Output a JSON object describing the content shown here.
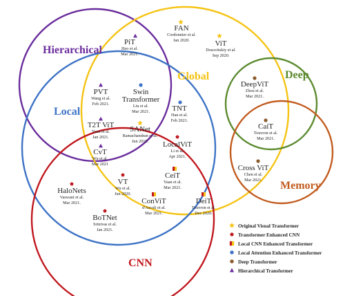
{
  "colors": {
    "hierarchical": "#6a2c9c",
    "global": "#f5c312",
    "local": "#3d73c5",
    "deep": "#5b8a2e",
    "memory": "#c25b1e",
    "cnn": "#c0181e",
    "text": "#222222",
    "star": "#f5c312",
    "pentagon": "#c0181e",
    "dot": "#3d73c5",
    "brown_dot": "#8a5a2b",
    "triangle": "#6a2c9c"
  },
  "sets": {
    "hierarchical": "Hierarchical",
    "global": "Global",
    "local": "Local",
    "deep": "Deep",
    "memory": "Memory",
    "cnn": "CNN"
  },
  "models": [
    {
      "key": "fan",
      "name": "FAN",
      "lines": [
        "Cordonnier et al.",
        "Jan 2020."
      ],
      "marker": "star"
    },
    {
      "key": "vit",
      "name": "ViT",
      "lines": [
        "Dosovitskiy et al.",
        "Sep 2020."
      ],
      "marker": "star"
    },
    {
      "key": "pit",
      "name": "PiT",
      "lines": [
        "Heo et al.",
        "Mar 2021."
      ],
      "marker": "triangle"
    },
    {
      "key": "deepvit",
      "name": "DeepViT",
      "lines": [
        "Zhou et al.",
        "Mar 2021."
      ],
      "marker": "brown_dot"
    },
    {
      "key": "pvt",
      "name": "PVT",
      "lines": [
        "Wang et al.",
        "Feb 2021."
      ],
      "marker": "triangle"
    },
    {
      "key": "swin",
      "name": "Swin",
      "name2": "Transformer",
      "lines": [
        "Liu et al.",
        "Mar 2021."
      ],
      "marker": "dot"
    },
    {
      "key": "tnt",
      "name": "TNT",
      "lines": [
        "Han et al.",
        "Feb 2021."
      ],
      "marker": "dot"
    },
    {
      "key": "cait",
      "name": "CaiT",
      "lines": [
        "Touvron et al.",
        "Mar 2021."
      ],
      "marker": "brown_dot"
    },
    {
      "key": "t2tvit",
      "name": "T2T ViT",
      "lines": [
        "Yuan et al.",
        "Jan 2021."
      ],
      "marker": "triangle"
    },
    {
      "key": "sanet",
      "name": "SANet",
      "lines": [
        "Ramachandran et al.",
        "Jun 2019."
      ],
      "marker": "star"
    },
    {
      "key": "localvit",
      "name": "LocalViT",
      "lines": [
        "Li et al.",
        "Apr 2021."
      ],
      "marker": "pentagon"
    },
    {
      "key": "cvt",
      "name": "CvT",
      "lines": [
        "Wu et al.",
        "Mar 2021"
      ],
      "marker": "triangle"
    },
    {
      "key": "crossvit",
      "name": "Cross ViT",
      "lines": [
        "Chen et al.",
        "Mar 2021."
      ],
      "marker": "brown_dot"
    },
    {
      "key": "ceit",
      "name": "CeiT",
      "lines": [
        "Yuan et al.",
        "Mar 2021."
      ],
      "marker": "square"
    },
    {
      "key": "vt",
      "name": "VT",
      "lines": [
        "Wu et al.",
        "Jun 2020."
      ],
      "marker": "pentagon"
    },
    {
      "key": "halonets",
      "name": "HaloNets",
      "lines": [
        "Vaswani et al.",
        "Mar 2021."
      ],
      "marker": "pentagon"
    },
    {
      "key": "convit",
      "name": "ConViT",
      "lines": [
        "d'Ascoli et al.",
        "Mar 2021."
      ],
      "marker": "square"
    },
    {
      "key": "deit",
      "name": "DeiT",
      "lines": [
        "Touvron et al.",
        "Dec 2020."
      ],
      "marker": "square"
    },
    {
      "key": "botnet",
      "name": "BoTNet",
      "lines": [
        "Srinivas et al.",
        "Jan 2021."
      ],
      "marker": "pentagon"
    }
  ],
  "legend": [
    {
      "marker": "star",
      "label": "Original Visual Transformer"
    },
    {
      "marker": "pentagon",
      "label": "Transformer Enhanced CNN"
    },
    {
      "marker": "square",
      "label": "Local CNN Enhanced Transformer"
    },
    {
      "marker": "dot",
      "label": "Local Attention Enhanced Transformer"
    },
    {
      "marker": "brown_dot",
      "label": "Deep Transformer"
    },
    {
      "marker": "triangle",
      "label": "Hierarchical Transformer"
    }
  ]
}
